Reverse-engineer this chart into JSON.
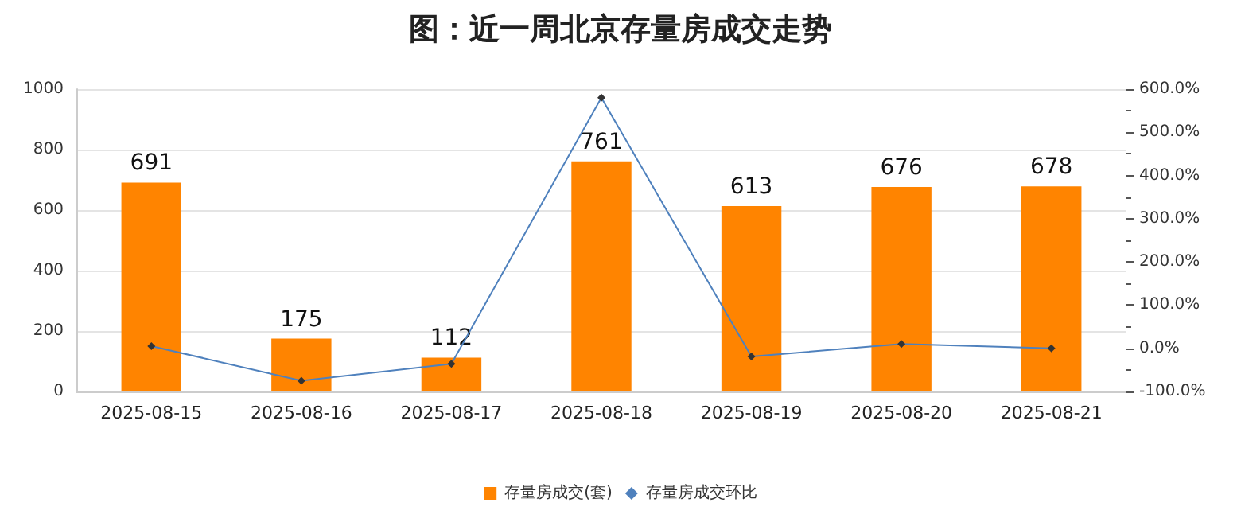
{
  "chart_data": {
    "type": "bar",
    "title": "图：近一周北京存量房成交走势",
    "categories": [
      "2025-08-15",
      "2025-08-16",
      "2025-08-17",
      "2025-08-18",
      "2025-08-19",
      "2025-08-20",
      "2025-08-21"
    ],
    "series": [
      {
        "name": "存量房成交(套)",
        "color": "#ff8400",
        "values": [
          691,
          175,
          112,
          761,
          613,
          676,
          678
        ],
        "data_labels": true
      },
      {
        "name": "存量房成交环比",
        "type": "line",
        "axis": "y2",
        "color": "#4f81bd",
        "marker": "diamond",
        "values": [
          5,
          -75,
          -36,
          580,
          -19,
          10,
          0
        ]
      }
    ],
    "ylim": [
      0,
      1000
    ],
    "yticks": [
      0,
      200,
      400,
      600,
      800,
      1000
    ],
    "y2lim": [
      -100,
      600
    ],
    "y2ticks": [
      {
        "value": -100,
        "label": "-100.0%"
      },
      {
        "value": 0,
        "label": "0.0%"
      },
      {
        "value": 100,
        "label": "100.0%"
      },
      {
        "value": 200,
        "label": "200.0%"
      },
      {
        "value": 300,
        "label": "300.0%"
      },
      {
        "value": 400,
        "label": "400.0%"
      },
      {
        "value": 500,
        "label": "500.0%"
      },
      {
        "value": 600,
        "label": "600.0%"
      }
    ],
    "grid": "y",
    "legend": "bottom"
  }
}
